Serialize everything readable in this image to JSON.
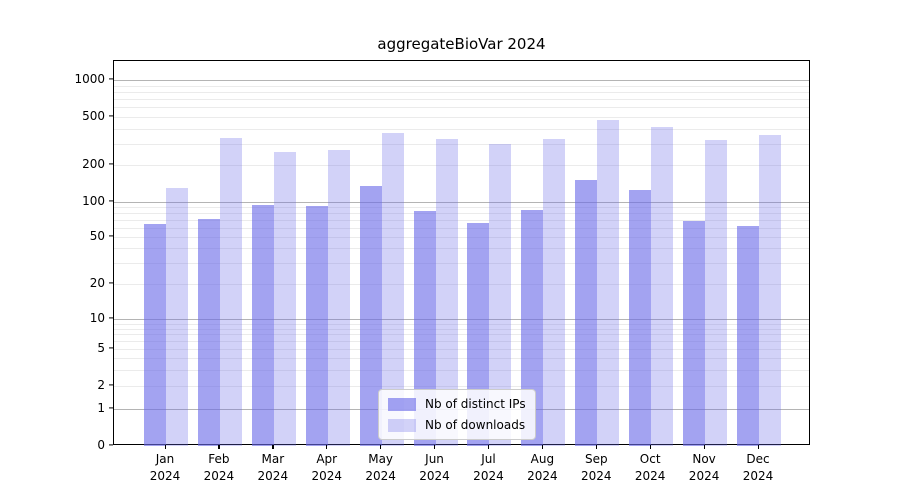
{
  "chart_data": {
    "type": "bar",
    "title": "aggregateBioVar 2024",
    "xlabel": "",
    "ylabel": "",
    "year": "2024",
    "categories": [
      "Jan",
      "Feb",
      "Mar",
      "Apr",
      "May",
      "Jun",
      "Jul",
      "Aug",
      "Sep",
      "Oct",
      "Nov",
      "Dec"
    ],
    "series": [
      {
        "name": "Nb of distinct IPs",
        "color": "rgba(107,107,232,0.62)",
        "values": [
          65,
          72,
          95,
          93,
          135,
          83,
          66,
          85,
          150,
          125,
          68,
          62
        ]
      },
      {
        "name": "Nb of downloads",
        "color": "rgba(107,107,232,0.30)",
        "values": [
          130,
          335,
          255,
          265,
          365,
          330,
          300,
          330,
          475,
          410,
          320,
          355
        ]
      }
    ],
    "y_axis": {
      "scale": "symlog-like",
      "ylim": [
        0,
        1400
      ],
      "ticks": [
        {
          "label": "1000",
          "value": 1000,
          "y": 19,
          "major": true
        },
        {
          "label": "500",
          "value": 500,
          "y": 56,
          "major": false
        },
        {
          "label": "200",
          "value": 200,
          "y": 104,
          "major": false
        },
        {
          "label": "100",
          "value": 100,
          "y": 141,
          "major": true
        },
        {
          "label": "50",
          "value": 50,
          "y": 176,
          "major": false
        },
        {
          "label": "20",
          "value": 20,
          "y": 223,
          "major": false
        },
        {
          "label": "10",
          "value": 10,
          "y": 258,
          "major": true
        },
        {
          "label": "5",
          "value": 5,
          "y": 288,
          "major": false
        },
        {
          "label": "2",
          "value": 2,
          "y": 325,
          "major": false
        },
        {
          "label": "1",
          "value": 1,
          "y": 348,
          "major": true
        },
        {
          "label": "0",
          "value": 0,
          "y": 385,
          "major": false
        }
      ],
      "minor_gridline_values": [
        3,
        4,
        6,
        7,
        8,
        9,
        30,
        40,
        60,
        70,
        80,
        90,
        300,
        400,
        600,
        700,
        800,
        900
      ]
    },
    "legend_position": "lower center",
    "grid": true,
    "colors": {
      "bar_base": "#6b6be8",
      "grid_major": "#b4b4b4",
      "grid_minor": "#ebebeb",
      "axis": "#000000",
      "background": "#ffffff",
      "legend_border": "#cccccc"
    }
  }
}
